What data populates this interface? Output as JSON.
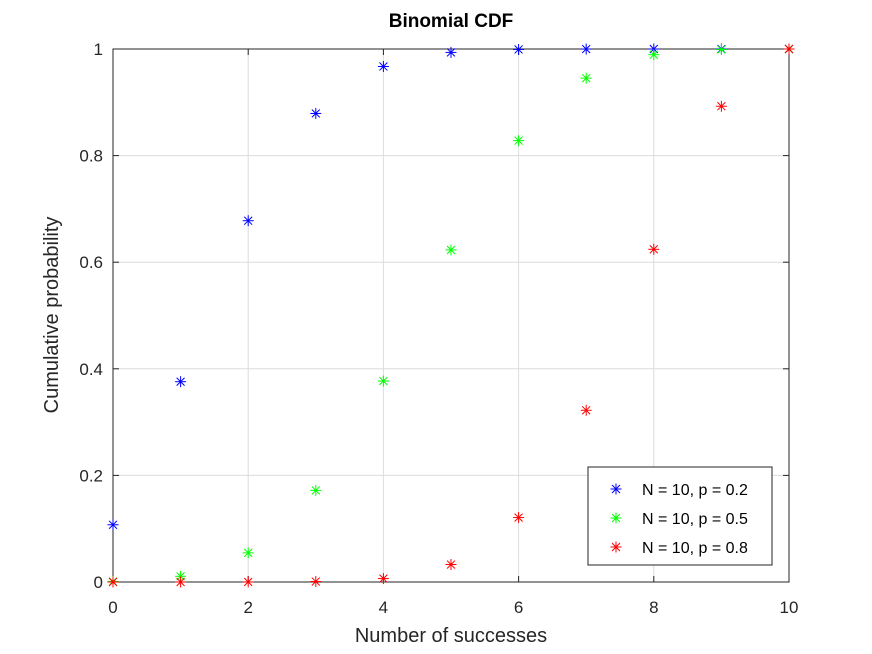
{
  "chart_data": {
    "type": "scatter",
    "title": "Binomial CDF",
    "xlabel": "Number of successes",
    "ylabel": "Cumulative probability",
    "xlim": [
      0,
      10
    ],
    "ylim": [
      0,
      1
    ],
    "grid": true,
    "legend_position": "bottom-right",
    "x_ticks": [
      0,
      2,
      4,
      6,
      8,
      10
    ],
    "x_tick_labels": [
      "0",
      "2",
      "4",
      "6",
      "8",
      "10"
    ],
    "y_ticks": [
      0,
      0.2,
      0.4,
      0.6,
      0.8,
      1
    ],
    "y_tick_labels": [
      "0",
      "0.2",
      "0.4",
      "0.6",
      "0.8",
      "1"
    ],
    "marker": "asterisk",
    "x": [
      0,
      1,
      2,
      3,
      4,
      5,
      6,
      7,
      8,
      9,
      10
    ],
    "series": [
      {
        "name": "N = 10, p = 0.2",
        "color": "#0000ff",
        "values": [
          0.1074,
          0.3758,
          0.6778,
          0.8791,
          0.9672,
          0.9936,
          0.9991,
          0.9999,
          1.0,
          1.0,
          1.0
        ]
      },
      {
        "name": "N = 10, p = 0.5",
        "color": "#00ff00",
        "values": [
          0.001,
          0.0107,
          0.0547,
          0.1719,
          0.377,
          0.623,
          0.8281,
          0.9453,
          0.9893,
          0.999,
          1.0
        ]
      },
      {
        "name": "N = 10, p = 0.8",
        "color": "#ff0000",
        "values": [
          0.0,
          0.0,
          0.0001,
          0.0009,
          0.0064,
          0.0328,
          0.1209,
          0.3222,
          0.6242,
          0.8926,
          1.0
        ]
      }
    ]
  }
}
